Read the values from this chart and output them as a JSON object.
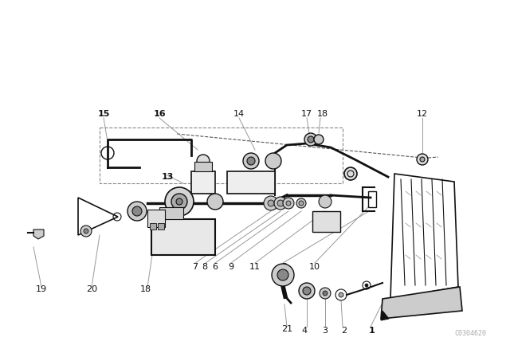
{
  "bg_color": "#ffffff",
  "dc": "#111111",
  "lc": "#777777",
  "watermark": "C0304620",
  "wm_color": "#aaaaaa",
  "fig_width": 6.4,
  "fig_height": 4.48,
  "dpi": 100
}
